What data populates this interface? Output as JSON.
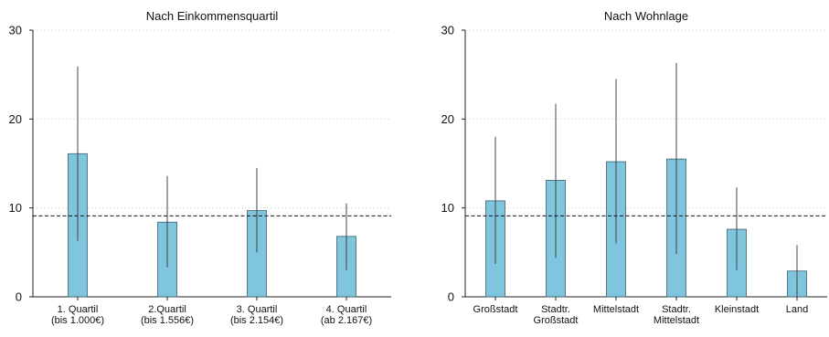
{
  "chart_data": [
    {
      "type": "bar",
      "title": "Nach Einkommensquartil",
      "xlabel": "",
      "ylabel": "",
      "ylim": [
        0,
        30
      ],
      "yticks": [
        0,
        10,
        20,
        30
      ],
      "grid": "horizontal dotted",
      "reference_line": 9.1,
      "bar_color": "#7ec5dd",
      "categories": [
        [
          "1. Quartil",
          "(bis 1.000€)"
        ],
        [
          "2.Quartil",
          "(bis 1.556€)"
        ],
        [
          "3. Quartil",
          "(bis 2.154€)"
        ],
        [
          "4. Quartil",
          "(ab 2.167€)"
        ]
      ],
      "values": [
        16.1,
        8.4,
        9.7,
        6.8
      ],
      "error_low": [
        6.3,
        3.3,
        5.0,
        3.0
      ],
      "error_high": [
        25.9,
        13.6,
        14.5,
        10.5
      ]
    },
    {
      "type": "bar",
      "title": "Nach Wohnlage",
      "xlabel": "",
      "ylabel": "",
      "ylim": [
        0,
        30
      ],
      "yticks": [
        0,
        10,
        20,
        30
      ],
      "grid": "horizontal dotted",
      "reference_line": 9.1,
      "bar_color": "#7ec5dd",
      "categories": [
        [
          "Großstadt"
        ],
        [
          "Stadtr.",
          "Großstadt"
        ],
        [
          "Mittelstadt"
        ],
        [
          "Stadtr.",
          "Mittelstadt"
        ],
        [
          "Kleinstadt"
        ],
        [
          "Land"
        ]
      ],
      "values": [
        10.8,
        13.1,
        15.2,
        15.5,
        7.6,
        2.9
      ],
      "error_low": [
        3.7,
        4.4,
        6.0,
        4.8,
        3.0,
        0.0
      ],
      "error_high": [
        18.0,
        21.7,
        24.5,
        26.3,
        12.3,
        5.8
      ]
    }
  ]
}
